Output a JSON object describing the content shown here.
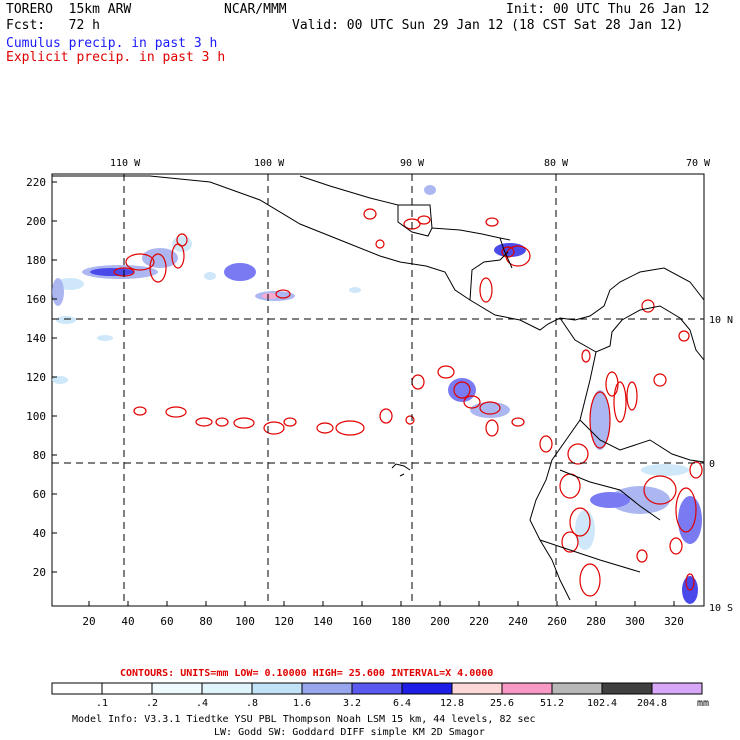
{
  "header": {
    "model_name": "TORERO  15km ARW",
    "org": "NCAR/MMM",
    "init": "Init: 00 UTC Thu 26 Jan 12",
    "fcst": "Fcst:   72 h",
    "valid": "Valid: 00 UTC Sun 29 Jan 12 (18 CST Sat 28 Jan 12)",
    "field1": "Cumulus precip. in past 3 h",
    "field2": "Explicit precip. in past 3 h"
  },
  "map": {
    "lon_labels": [
      "110 W",
      "100 W",
      "90 W",
      "80 W",
      "70 W"
    ],
    "lat_labels": [
      "10 N",
      "0",
      "10 S"
    ],
    "y_ticks": [
      "220",
      "200",
      "180",
      "160",
      "140",
      "120",
      "100",
      "80",
      "60",
      "40",
      "20"
    ],
    "x_ticks": [
      "20",
      "40",
      "60",
      "80",
      "100",
      "120",
      "140",
      "160",
      "180",
      "200",
      "220",
      "240",
      "260",
      "280",
      "300",
      "320"
    ]
  },
  "contours": {
    "text": "CONTOURS:  UNITS=mm  LOW= 0.10000      HIGH=  25.600     INTERVAL=X  4.0000"
  },
  "colorbar": {
    "labels": [
      ".1",
      ".2",
      ".4",
      ".8",
      "1.6",
      "3.2",
      "6.4",
      "12.8",
      "25.6",
      "51.2",
      "102.4",
      "204.8"
    ],
    "unit": "mm",
    "colors": [
      "#ffffff",
      "#ffffff",
      "#f0fbff",
      "#e0f4fc",
      "#c2e2f8",
      "#98a6ee",
      "#5a5af0",
      "#1e1ee6",
      "#fcd8d8",
      "#f898c4",
      "#b8b8b8",
      "#404040",
      "#d8a8f8"
    ]
  },
  "footer": {
    "line1": "Model Info: V3.3.1    Tiedtke YSU PBL  Thompson    Noah LSM  15 km,   44 levels,   82 sec",
    "line2": "LW: Godd SW: Goddard DIFF  simple KM  2D Smagor"
  }
}
